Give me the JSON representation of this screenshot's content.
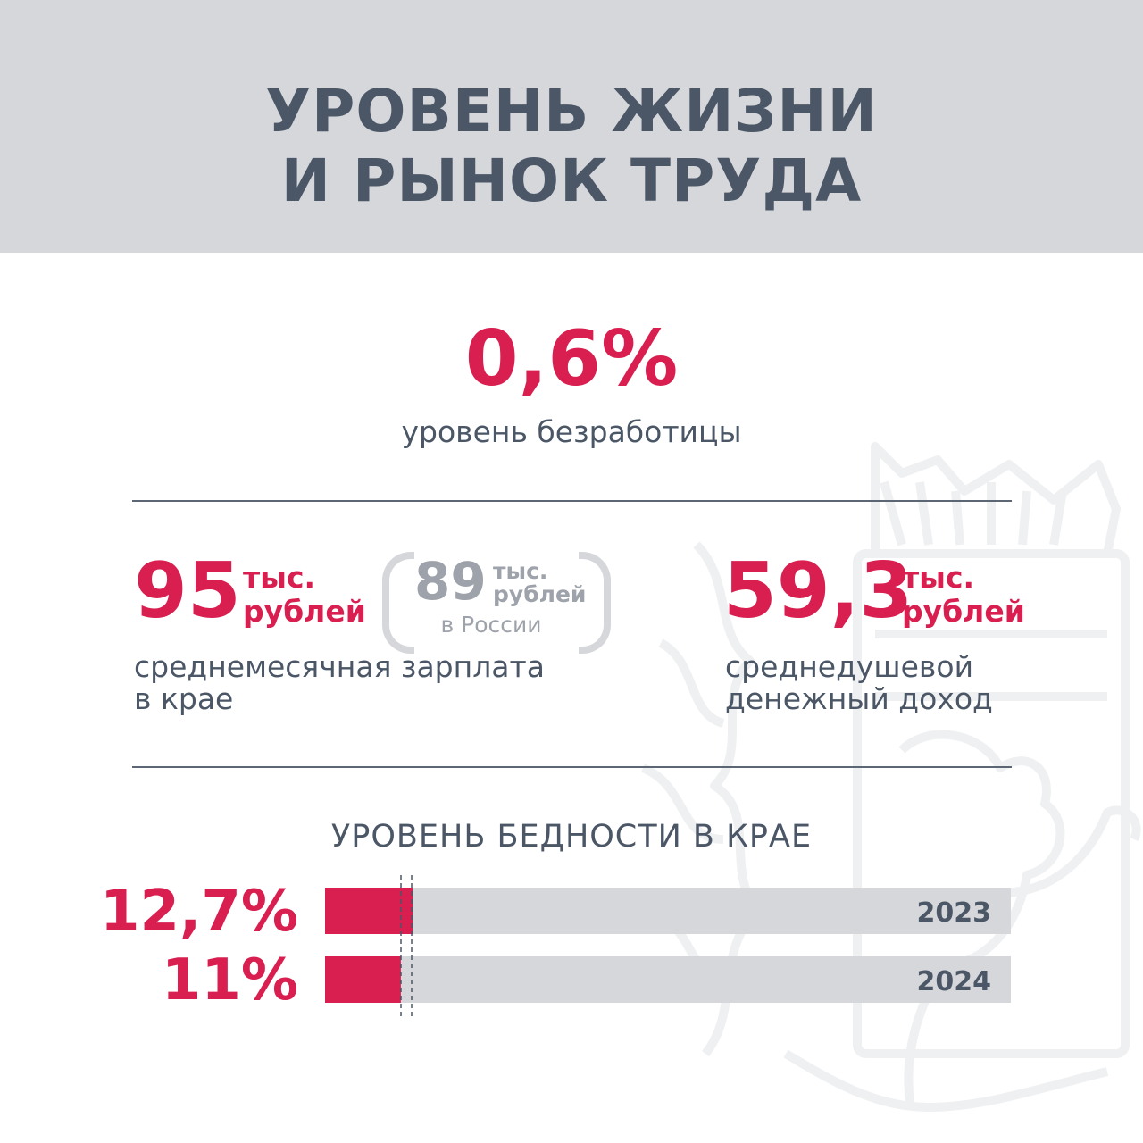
{
  "header": {
    "title_line1": "УРОВЕНЬ ЖИЗНИ",
    "title_line2": "И РЫНОК ТРУДА"
  },
  "unemployment": {
    "value": "0,6%",
    "label": "уровень безработицы"
  },
  "salary": {
    "value": "95",
    "unit_line1": "тыс.",
    "unit_line2": "рублей",
    "caption_line1": "среднемесячная зарплата",
    "caption_line2": "в крае",
    "russia": {
      "value": "89",
      "unit_line1": "тыс.",
      "unit_line2": "рублей",
      "note": "в России"
    }
  },
  "income": {
    "value": "59,3",
    "unit_line1": "тыс.",
    "unit_line2": "рублей",
    "caption_line1": "среднедушевой",
    "caption_line2": "денежный доход"
  },
  "colors": {
    "accent": "#d81f50",
    "text": "#4b5766",
    "track": "#d6d7db",
    "muted": "#9ea2aa"
  },
  "chart_data": {
    "type": "bar",
    "title": "УРОВЕНЬ БЕДНОСТИ В КРАЕ",
    "categories": [
      "2023",
      "2024"
    ],
    "values": [
      12.7,
      11
    ],
    "value_labels": [
      "12,7%",
      "11%"
    ],
    "orientation": "horizontal",
    "grid": false,
    "legend": "none"
  }
}
